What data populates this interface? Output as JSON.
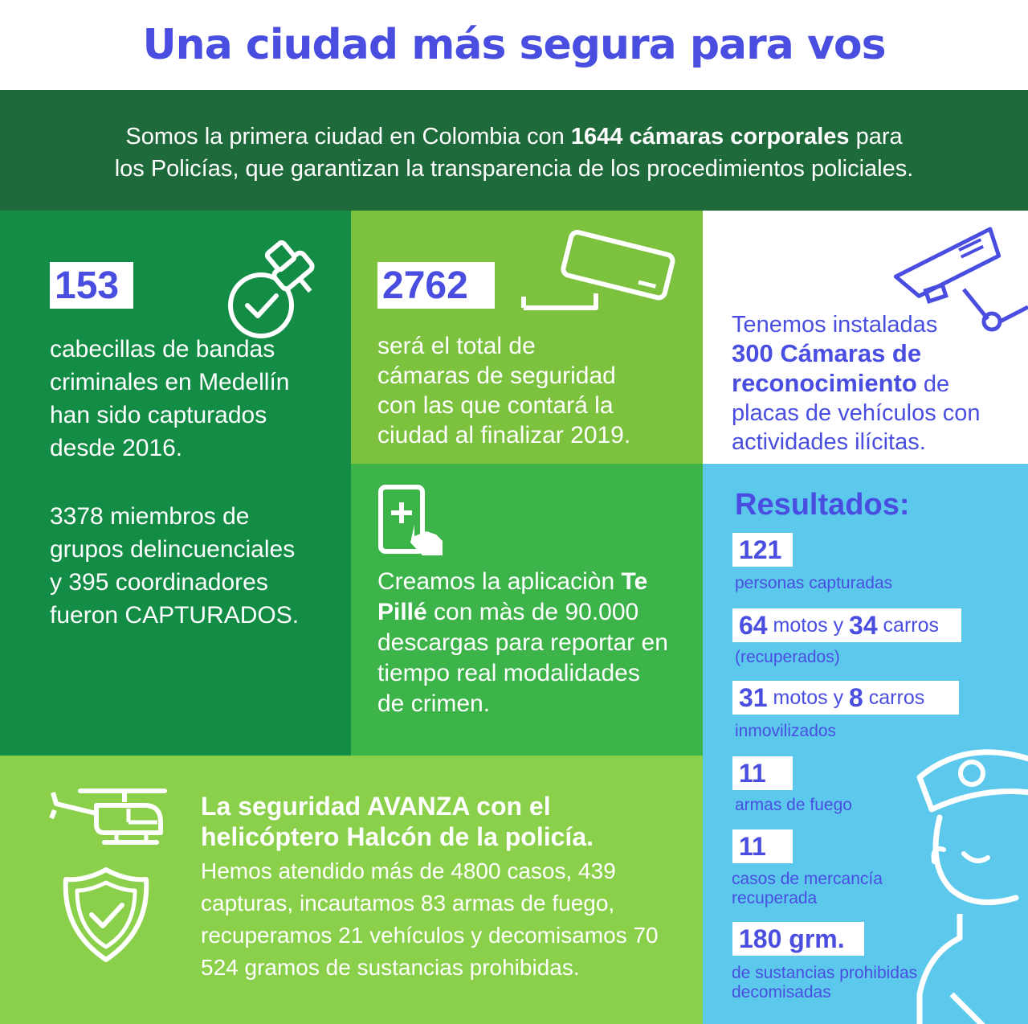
{
  "title": "Una ciudad más segura para vos",
  "intro": {
    "line1_pre": "Somos la primera ciudad en Colombia con ",
    "line1_bold": "1644 cámaras corporales",
    "line1_post": " para",
    "line2": "los Policías, que garantizan la transparencia de los procedimientos policiales."
  },
  "left_panel": {
    "number": "153",
    "text": [
      "cabecillas de bandas",
      "criminales en Medellín",
      "han sido capturados",
      "desde 2016."
    ],
    "text2": [
      "3378 miembros de",
      "grupos delincuenciales",
      "y 395 coordinadores",
      "fueron CAPTURADOS."
    ],
    "icon": "pushpin-check-icon"
  },
  "mid_panel": {
    "number": "2762",
    "text": [
      "será el total de",
      "cámaras de seguridad",
      "con las que contará la",
      "ciudad al finalizar 2019."
    ],
    "icon": "security-camera-icon"
  },
  "camera_panel": {
    "line1": "Tenemos instaladas",
    "bold1": "300 Cámaras de",
    "bold2": "reconocimiento",
    "after_bold2": " de",
    "line4": "placas de vehículos con",
    "line5": "actividades ilícitas.",
    "icon": "cctv-camera-icon"
  },
  "app_panel": {
    "pre": "Creamos la aplicaciòn ",
    "bold1": "Te",
    "bold2": "Pillé",
    "line2_post": " con màs de 90.000",
    "line3": "descargas para reportar en",
    "line4": "tiempo real modalidades",
    "line5": "de crimen.",
    "icon": "phone-tap-icon"
  },
  "heli_panel": {
    "head1": "La seguridad AVANZA con el",
    "head2": "helicóptero Halcón de la policía.",
    "body": [
      "Hemos atendido más de 4800 casos, 439",
      "capturas, incautamos  83 armas de fuego,",
      "recuperamos 21 vehículos y decomisamos 70",
      "524 gramos de sustancias prohibidas."
    ],
    "icons": [
      "helicopter-icon",
      "shield-check-icon"
    ]
  },
  "results": {
    "title": "Resultados:",
    "r1_num": "121",
    "r1_cap": "personas capturadas",
    "r2_n1": "64",
    "r2_t1": " motos y ",
    "r2_n2": "34",
    "r2_t2": " carros",
    "r2_cap": "(recuperados)",
    "r3_n1": "31",
    "r3_t1": " motos y ",
    "r3_n2": "8",
    "r3_t2": " carros",
    "r3_cap": "inmovilizados",
    "r4_num": "11",
    "r4_cap": "armas de fuego",
    "r5_num": "11",
    "r5_cap1": "casos de mercancía",
    "r5_cap2": "recuperada",
    "r6_num": "180 grm.",
    "r6_cap1": "de sustancias prohibidas",
    "r6_cap2": "decomisadas",
    "icon": "police-officer-icon"
  },
  "colors": {
    "accent": "#4a4ee0",
    "dark_green": "#1f6a3a",
    "green1": "#138c45",
    "green2": "#7dc23f",
    "green3": "#3cb44a",
    "green4": "#8bd04a",
    "light_blue": "#5bc8ec"
  }
}
